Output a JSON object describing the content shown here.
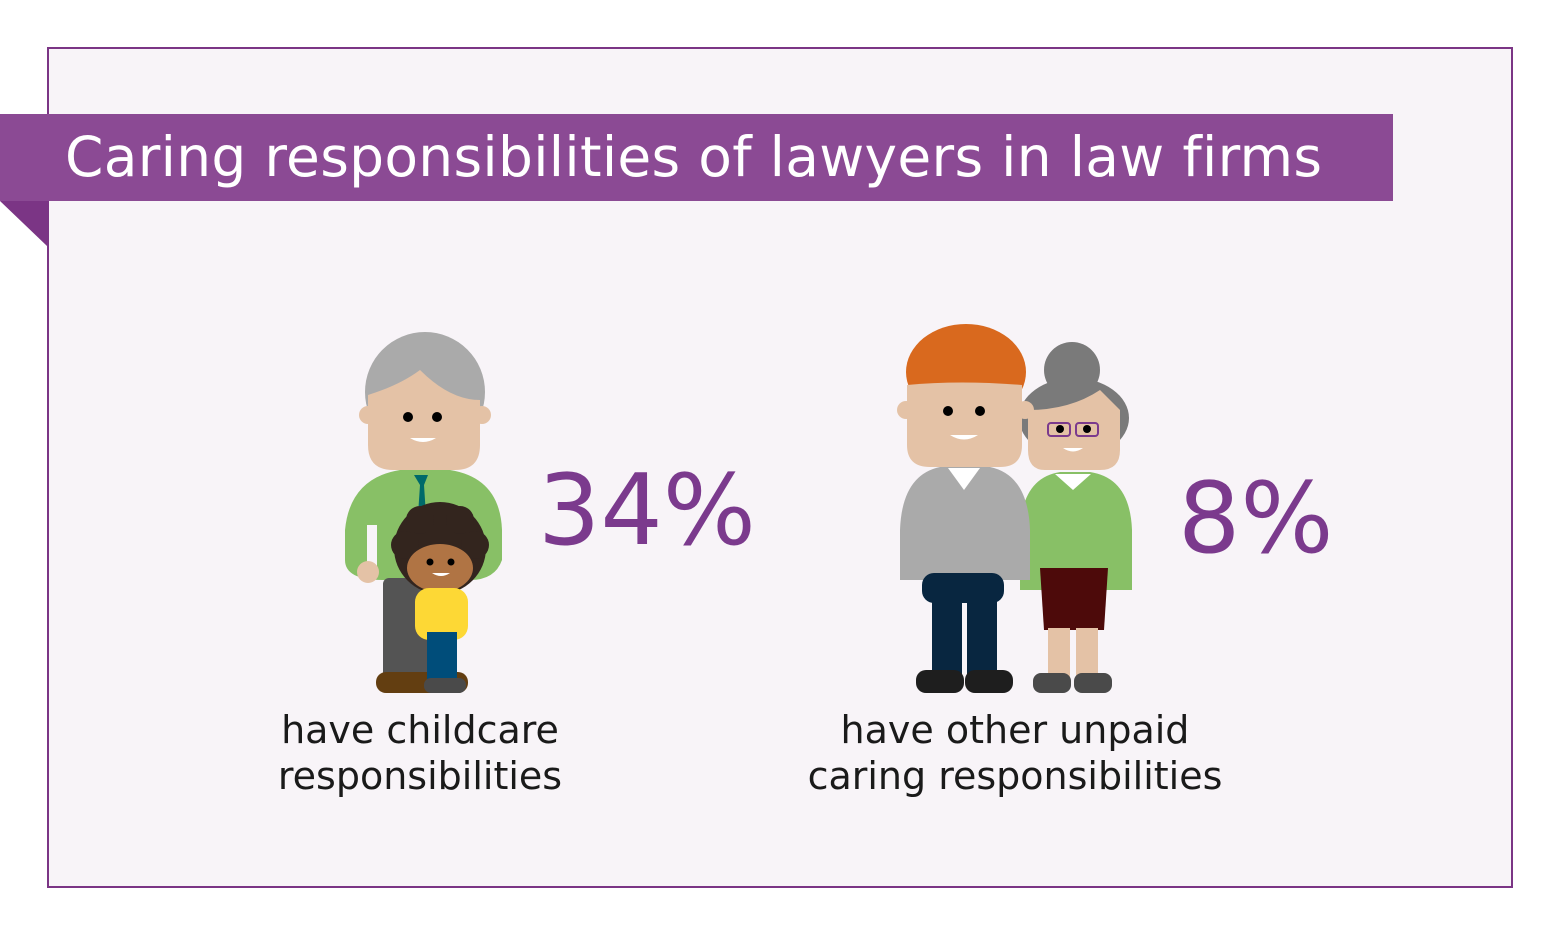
{
  "title": "Caring responsibilities of lawyers in law firms",
  "colors": {
    "banner": "#8b4a94",
    "accent": "#7b3a8d",
    "background": "#f8f4f8"
  },
  "stats": [
    {
      "value": "34%",
      "caption_line1": "have childcare",
      "caption_line2": "responsibilities",
      "illustration": "grandfather-and-child-icon"
    },
    {
      "value": "8%",
      "caption_line1": "have other unpaid",
      "caption_line2": "caring responsibilities",
      "illustration": "older-couple-icon"
    }
  ]
}
